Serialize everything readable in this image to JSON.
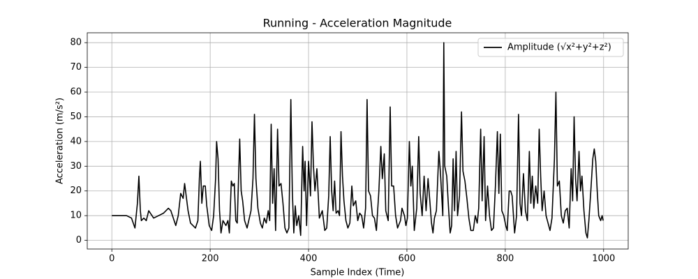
{
  "chart_data": {
    "type": "line",
    "title": "Running - Acceleration Magnitude",
    "x_label": "Sample Index (Time)",
    "y_label": "Acceleration (m/s²)",
    "xlim": [
      -50,
      1050
    ],
    "ylim": [
      -3.5,
      84
    ],
    "xticks": [
      0,
      200,
      400,
      600,
      800,
      1000
    ],
    "yticks": [
      0,
      10,
      20,
      30,
      40,
      50,
      60,
      70,
      80
    ],
    "grid": true,
    "legend": "upper right",
    "x": [
      0,
      10,
      20,
      30,
      40,
      47,
      52,
      55,
      58,
      60,
      65,
      70,
      75,
      85,
      95,
      105,
      115,
      120,
      130,
      135,
      140,
      145,
      148,
      155,
      160,
      170,
      175,
      178,
      180,
      183,
      186,
      190,
      193,
      198,
      203,
      207,
      211,
      213,
      216,
      219,
      222,
      226,
      232,
      236,
      239,
      243,
      246,
      249,
      252,
      255,
      260,
      263,
      266,
      270,
      275,
      283,
      287,
      290,
      293,
      297,
      302,
      306,
      310,
      314,
      318,
      321,
      324,
      327,
      330,
      333,
      337,
      340,
      344,
      348,
      352,
      356,
      360,
      364,
      367,
      370,
      373,
      376,
      380,
      384,
      388,
      391,
      393,
      396,
      400,
      404,
      407,
      410,
      413,
      417,
      422,
      428,
      433,
      437,
      441,
      444,
      447,
      450,
      453,
      456,
      460,
      463,
      466,
      469,
      472,
      476,
      480,
      484,
      488,
      491,
      496,
      500,
      504,
      508,
      512,
      516,
      519,
      522,
      526,
      530,
      534,
      538,
      543,
      547,
      550,
      554,
      557,
      562,
      566,
      569,
      573,
      577,
      581,
      587,
      590,
      595,
      598,
      601,
      605,
      608,
      611,
      615,
      620,
      624,
      627,
      631,
      635,
      639,
      643,
      647,
      650,
      653,
      656,
      660,
      665,
      668,
      673,
      675,
      677,
      681,
      685,
      688,
      691,
      694,
      697,
      700,
      703,
      707,
      711,
      714,
      718,
      722,
      726,
      730,
      735,
      739,
      743,
      746,
      750,
      753,
      757,
      760,
      764,
      768,
      772,
      776,
      780,
      784,
      787,
      790,
      793,
      797,
      801,
      804,
      808,
      811,
      814,
      819,
      823,
      827,
      830,
      833,
      837,
      841,
      845,
      849,
      852,
      855,
      858,
      862,
      866,
      869,
      872,
      875,
      879,
      883,
      887,
      891,
      895,
      900,
      903,
      906,
      910,
      914,
      918,
      922,
      926,
      930,
      934,
      937,
      940,
      943,
      946,
      950,
      953,
      956,
      960,
      964,
      967,
      970,
      974,
      978,
      981,
      984,
      987,
      990,
      994,
      997,
      999
    ],
    "series": [
      {
        "name": "Amplitude (√x²+y²+z²)",
        "color": "#000000",
        "values": [
          10,
          10,
          10,
          10,
          9,
          5,
          15,
          26,
          12,
          8,
          9,
          8,
          12,
          9,
          10,
          11,
          13,
          12,
          6,
          10,
          19,
          17,
          23,
          12,
          7,
          5,
          8,
          25,
          32,
          15,
          22,
          22,
          14,
          6,
          4,
          10,
          25,
          40,
          33,
          12,
          3,
          8,
          6,
          8,
          3,
          24,
          22,
          23,
          8,
          7,
          41,
          20,
          16,
          8,
          5,
          12,
          25,
          51,
          25,
          13,
          7,
          5,
          9,
          7,
          12,
          8,
          47,
          15,
          29,
          4,
          45,
          22,
          23,
          15,
          5,
          3,
          5,
          57,
          20,
          3,
          14,
          6,
          10,
          2,
          38,
          20,
          32,
          6,
          32,
          18,
          48,
          30,
          20,
          29,
          9,
          12,
          4,
          5,
          18,
          42,
          20,
          12,
          24,
          11,
          12,
          10,
          44,
          26,
          16,
          8,
          5,
          7,
          22,
          14,
          16,
          8,
          11,
          10,
          5,
          13,
          57,
          20,
          18,
          10,
          9,
          4,
          20,
          38,
          25,
          35,
          12,
          8,
          54,
          22,
          22,
          10,
          5,
          8,
          13,
          10,
          6,
          9,
          40,
          22,
          30,
          4,
          13,
          42,
          19,
          10,
          26,
          12,
          25,
          15,
          7,
          3,
          9,
          12,
          36,
          28,
          10,
          80,
          30,
          26,
          12,
          3,
          6,
          33,
          12,
          36,
          10,
          18,
          52,
          28,
          24,
          17,
          9,
          4,
          4,
          10,
          7,
          13,
          45,
          16,
          42,
          8,
          22,
          10,
          4,
          5,
          22,
          44,
          19,
          43,
          12,
          10,
          6,
          4,
          20,
          20,
          18,
          3,
          10,
          51,
          15,
          10,
          27,
          12,
          8,
          36,
          15,
          26,
          13,
          22,
          15,
          45,
          26,
          12,
          20,
          10,
          7,
          4,
          9,
          33,
          60,
          22,
          24,
          10,
          7,
          12,
          13,
          5,
          29,
          16,
          50,
          25,
          16,
          36,
          20,
          26,
          12,
          3,
          1,
          8,
          20,
          33,
          37,
          32,
          20,
          10,
          8,
          10,
          8
        ]
      }
    ]
  }
}
